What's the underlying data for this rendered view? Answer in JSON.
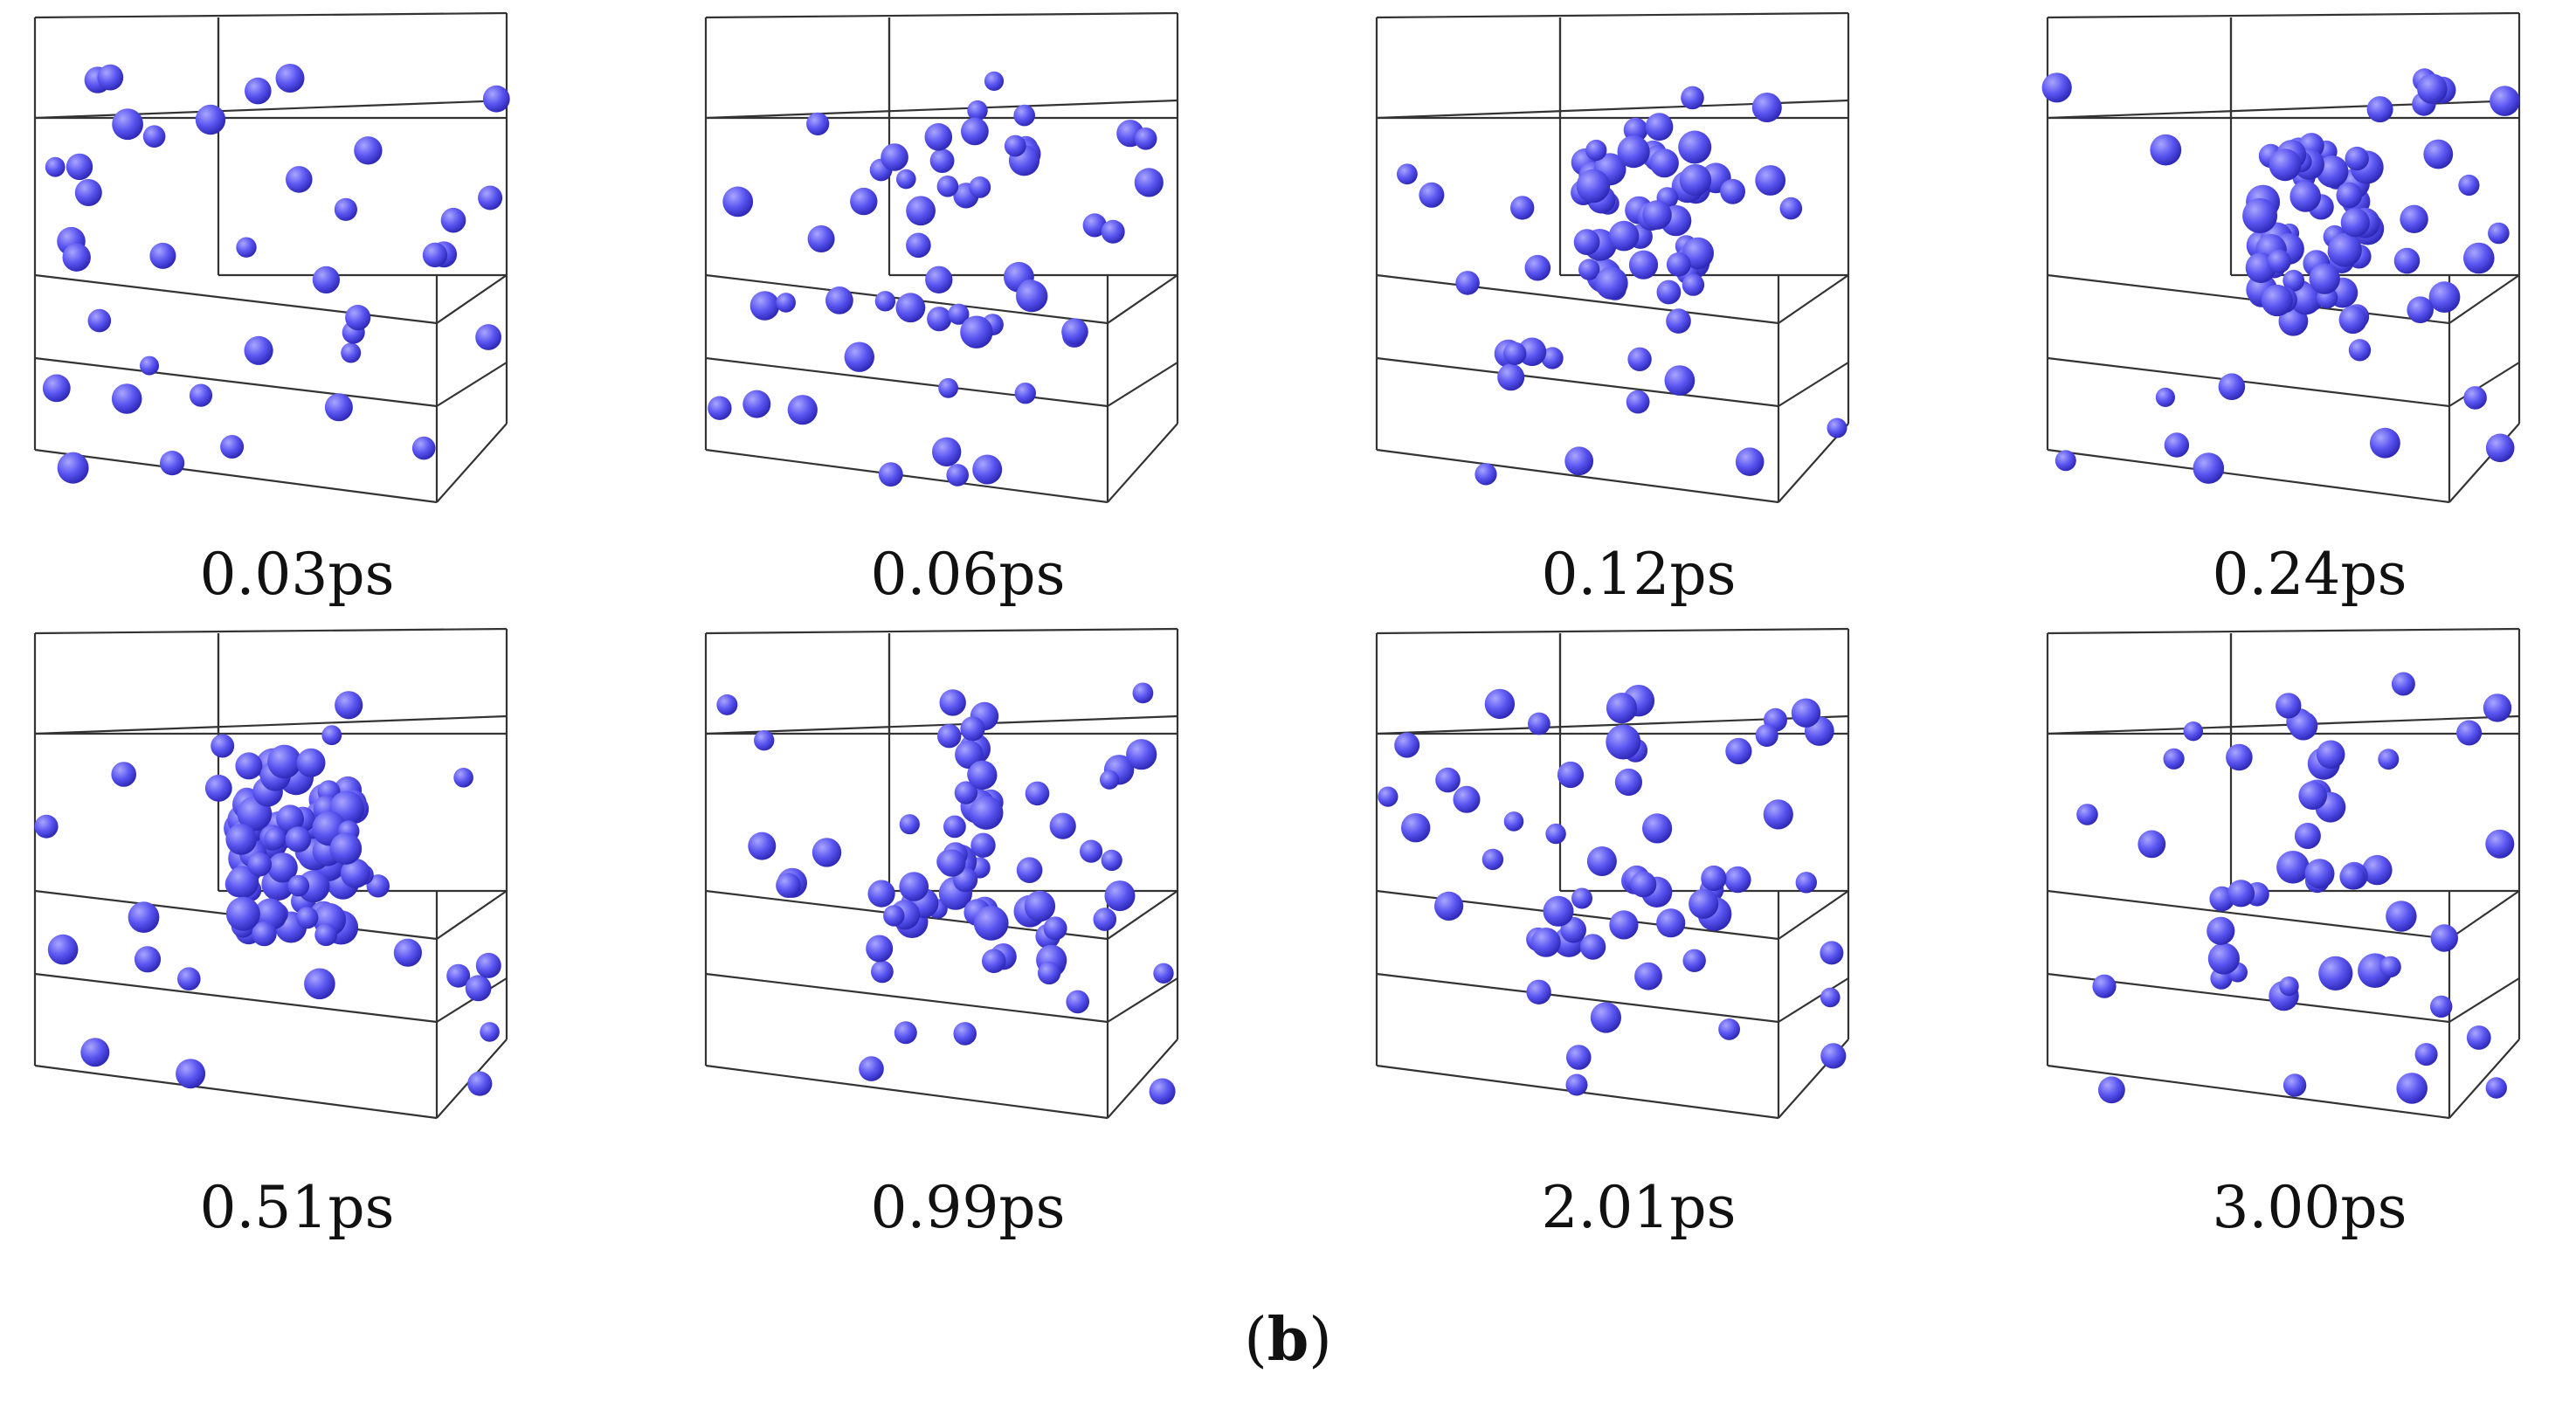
{
  "figure": {
    "panels": [
      {
        "time_label": "0.03ps",
        "state": "dispersed"
      },
      {
        "time_label": "0.06ps",
        "state": "forming"
      },
      {
        "time_label": "0.12ps",
        "state": "cluster"
      },
      {
        "time_label": "0.24ps",
        "state": "cluster-large"
      },
      {
        "time_label": "0.51ps",
        "state": "cluster-dense"
      },
      {
        "time_label": "0.99ps",
        "state": "branching"
      },
      {
        "time_label": "2.01ps",
        "state": "dispersing"
      },
      {
        "time_label": "3.00ps",
        "state": "dispersing-late"
      }
    ],
    "caption": {
      "open": "(",
      "letter": "b",
      "close": ")"
    },
    "colors": {
      "particle": "#5a55f0",
      "particle_highlight": "#a9a6ff",
      "particle_shadow": "#2e28b8",
      "box_edge": "#333333"
    }
  }
}
